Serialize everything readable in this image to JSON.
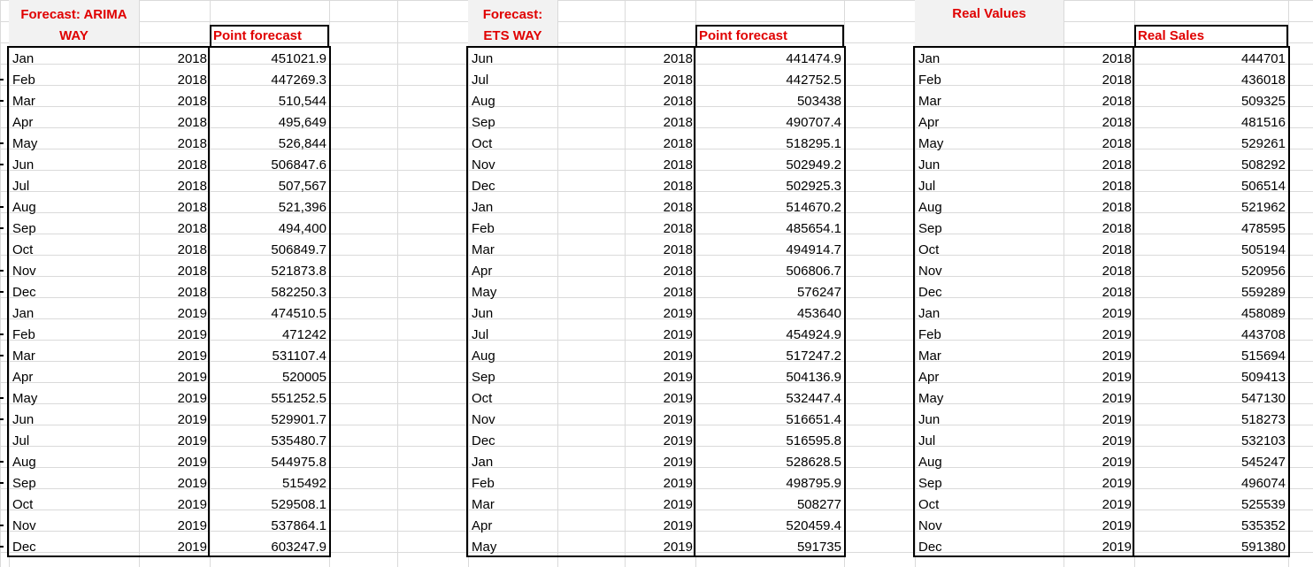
{
  "sections": [
    {
      "title_line1": "Forecast: ARIMA",
      "title_line2": "WAY",
      "value_header": "Point forecast",
      "rows": [
        [
          "Jan",
          "2018",
          "451021.9"
        ],
        [
          "Feb",
          "2018",
          "447269.3"
        ],
        [
          "Mar",
          "2018",
          "510,544"
        ],
        [
          "Apr",
          "2018",
          "495,649"
        ],
        [
          "May",
          "2018",
          "526,844"
        ],
        [
          "Jun",
          "2018",
          "506847.6"
        ],
        [
          "Jul",
          "2018",
          "507,567"
        ],
        [
          "Aug",
          "2018",
          "521,396"
        ],
        [
          "Sep",
          "2018",
          "494,400"
        ],
        [
          "Oct",
          "2018",
          "506849.7"
        ],
        [
          "Nov",
          "2018",
          "521873.8"
        ],
        [
          "Dec",
          "2018",
          "582250.3"
        ],
        [
          "Jan",
          "2019",
          "474510.5"
        ],
        [
          "Feb",
          "2019",
          "471242"
        ],
        [
          "Mar",
          "2019",
          "531107.4"
        ],
        [
          "Apr",
          "2019",
          "520005"
        ],
        [
          "May",
          "2019",
          "551252.5"
        ],
        [
          "Jun",
          "2019",
          "529901.7"
        ],
        [
          "Jul",
          "2019",
          "535480.7"
        ],
        [
          "Aug",
          "2019",
          "544975.8"
        ],
        [
          "Sep",
          "2019",
          "515492"
        ],
        [
          "Oct",
          "2019",
          "529508.1"
        ],
        [
          "Nov",
          "2019",
          "537864.1"
        ],
        [
          "Dec",
          "2019",
          "603247.9"
        ]
      ]
    },
    {
      "title_line1": "Forecast:",
      "title_line2": "ETS WAY",
      "value_header": "Point forecast",
      "rows": [
        [
          "Jun",
          "2018",
          "441474.9"
        ],
        [
          "Jul",
          "2018",
          "442752.5"
        ],
        [
          "Aug",
          "2018",
          "503438"
        ],
        [
          "Sep",
          "2018",
          "490707.4"
        ],
        [
          "Oct",
          "2018",
          "518295.1"
        ],
        [
          "Nov",
          "2018",
          "502949.2"
        ],
        [
          "Dec",
          "2018",
          "502925.3"
        ],
        [
          "Jan",
          "2018",
          "514670.2"
        ],
        [
          "Feb",
          "2018",
          "485654.1"
        ],
        [
          "Mar",
          "2018",
          "494914.7"
        ],
        [
          "Apr",
          "2018",
          "506806.7"
        ],
        [
          "May",
          "2018",
          "576247"
        ],
        [
          "Jun",
          "2019",
          "453640"
        ],
        [
          "Jul",
          "2019",
          "454924.9"
        ],
        [
          "Aug",
          "2019",
          "517247.2"
        ],
        [
          "Sep",
          "2019",
          "504136.9"
        ],
        [
          "Oct",
          "2019",
          "532447.4"
        ],
        [
          "Nov",
          "2019",
          "516651.4"
        ],
        [
          "Dec",
          "2019",
          "516595.8"
        ],
        [
          "Jan",
          "2019",
          "528628.5"
        ],
        [
          "Feb",
          "2019",
          "498795.9"
        ],
        [
          "Mar",
          "2019",
          "508277"
        ],
        [
          "Apr",
          "2019",
          "520459.4"
        ],
        [
          "May",
          "2019",
          "591735"
        ]
      ]
    },
    {
      "title_line1": "Real Values",
      "title_line2": "",
      "value_header": "Real Sales",
      "rows": [
        [
          "Jan",
          "2018",
          "444701"
        ],
        [
          "Feb",
          "2018",
          "436018"
        ],
        [
          "Mar",
          "2018",
          "509325"
        ],
        [
          "Apr",
          "2018",
          "481516"
        ],
        [
          "May",
          "2018",
          "529261"
        ],
        [
          "Jun",
          "2018",
          "508292"
        ],
        [
          "Jul",
          "2018",
          "506514"
        ],
        [
          "Aug",
          "2018",
          "521962"
        ],
        [
          "Sep",
          "2018",
          "478595"
        ],
        [
          "Oct",
          "2018",
          "505194"
        ],
        [
          "Nov",
          "2018",
          "520956"
        ],
        [
          "Dec",
          "2018",
          "559289"
        ],
        [
          "Jan",
          "2019",
          "458089"
        ],
        [
          "Feb",
          "2019",
          "443708"
        ],
        [
          "Mar",
          "2019",
          "515694"
        ],
        [
          "Apr",
          "2019",
          "509413"
        ],
        [
          "May",
          "2019",
          "547130"
        ],
        [
          "Jun",
          "2019",
          "518273"
        ],
        [
          "Jul",
          "2019",
          "532103"
        ],
        [
          "Aug",
          "2019",
          "545247"
        ],
        [
          "Sep",
          "2019",
          "496074"
        ],
        [
          "Oct",
          "2019",
          "525539"
        ],
        [
          "Nov",
          "2019",
          "535352"
        ],
        [
          "Dec",
          "2019",
          "591380"
        ]
      ]
    }
  ],
  "colors": {
    "header_text": "#e00000",
    "gridline": "#dadada",
    "header_fill": "#f2f2f2"
  }
}
